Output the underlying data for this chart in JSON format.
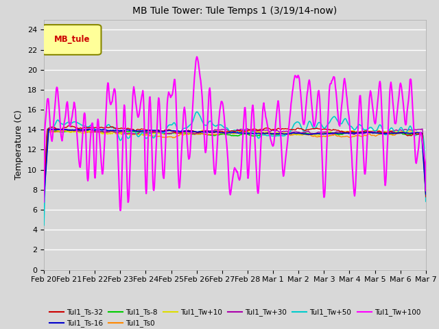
{
  "title": "MB Tule Tower: Tule Temps 1 (3/19/14-now)",
  "ylabel": "Temperature (C)",
  "ylim": [
    0,
    25
  ],
  "yticks": [
    0,
    2,
    4,
    6,
    8,
    10,
    12,
    14,
    16,
    18,
    20,
    22,
    24
  ],
  "bg_color": "#d8d8d8",
  "plot_bg_color": "#d8d8d8",
  "legend_box_color": "#ffff99",
  "legend_box_label": "MB_tule",
  "legend_box_text_color": "#cc0000",
  "series": [
    {
      "label": "Tul1_Ts-32",
      "color": "#cc0000",
      "lw": 1.0,
      "zorder": 5
    },
    {
      "label": "Tul1_Ts-16",
      "color": "#0000cc",
      "lw": 1.2,
      "zorder": 6
    },
    {
      "label": "Tul1_Ts-8",
      "color": "#00cc00",
      "lw": 1.2,
      "zorder": 4
    },
    {
      "label": "Tul1_Ts0",
      "color": "#ff8800",
      "lw": 1.0,
      "zorder": 4
    },
    {
      "label": "Tul1_Tw+10",
      "color": "#dddd00",
      "lw": 1.0,
      "zorder": 4
    },
    {
      "label": "Tul1_Tw+30",
      "color": "#aa00aa",
      "lw": 1.0,
      "zorder": 4
    },
    {
      "label": "Tul1_Tw+50",
      "color": "#00cccc",
      "lw": 1.2,
      "zorder": 4
    },
    {
      "label": "Tul1_Tw+100",
      "color": "#ff00ff",
      "lw": 1.5,
      "zorder": 7
    }
  ],
  "x_date_labels": [
    "Feb 20",
    "Feb 21",
    "Feb 22",
    "Feb 23",
    "Feb 24",
    "Feb 25",
    "Feb 26",
    "Feb 27",
    "Feb 28",
    "Mar 1",
    "Mar 2",
    "Mar 3",
    "Mar 4",
    "Mar 5",
    "Mar 6",
    "Mar 7"
  ],
  "n_points": 800,
  "legend_ncol_row1": 6,
  "legend_ncol_row2": 2
}
